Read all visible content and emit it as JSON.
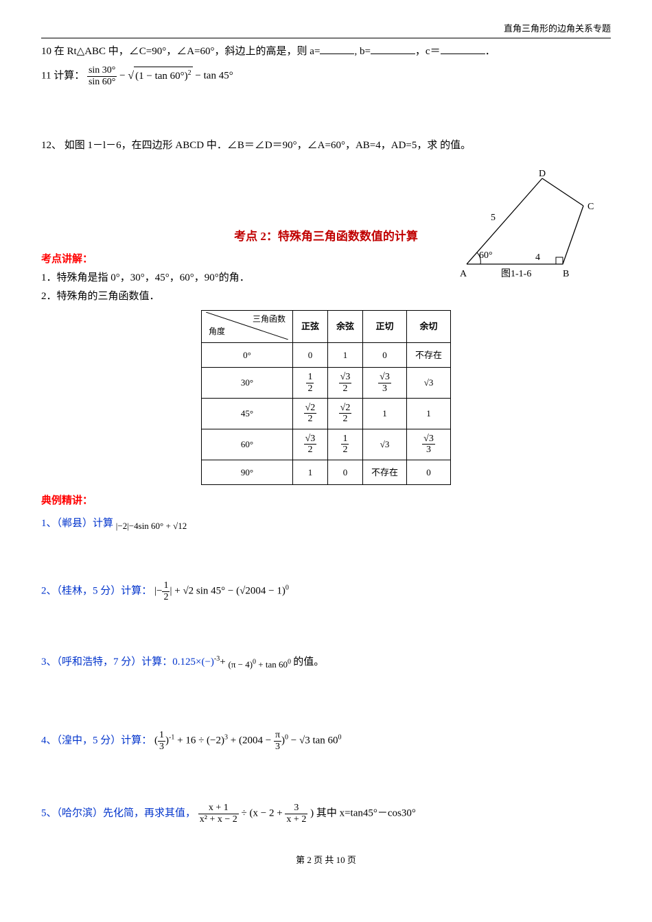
{
  "header": {
    "right_text": "直角三角形的边角关系专题"
  },
  "q10": {
    "prefix": "10 在 Rt△ABC 中，∠C=90°，∠A=60°，斜边上的高是，则 a=",
    "mid1": ", b=",
    "mid2": "，c＝",
    "tail": "．"
  },
  "q11": {
    "label": "11 计算：",
    "frac_num": "sin 30°",
    "frac_den": "sin 60°",
    "minus1": " − ",
    "sqrt_body": "(1 − tan 60°)",
    "sq_sup": "2",
    "minus2": " − tan 45°"
  },
  "q12": {
    "text": "12、 如图 1－l－6，在四边形 ABCD 中．∠B＝∠D＝90°，∠A=60°，AB=4，AD=5，求 的值。"
  },
  "figure": {
    "A": "A",
    "B": "B",
    "C": "C",
    "D": "D",
    "side5": "5",
    "side4": "4",
    "angle": "60°",
    "caption": "图1-1-6"
  },
  "kp2_title": "考点 2：特殊角三角函数数值的计算",
  "kdjj": "考点讲解：",
  "pt1": "1．特殊角是指 0°，30°，45°，60°，90°的角．",
  "pt2": "2．特殊角的三角函数值．",
  "table": {
    "hdr_diag_top": "三角函数",
    "hdr_diag_bottom": "角度",
    "cols": [
      "正弦",
      "余弦",
      "正切",
      "余切"
    ],
    "rows": [
      {
        "ang": "0°",
        "cells": [
          {
            "t": "0"
          },
          {
            "t": "1"
          },
          {
            "t": "0"
          },
          {
            "t": "不存在"
          }
        ]
      },
      {
        "ang": "30°",
        "cells": [
          {
            "frac": [
              "1",
              "2"
            ]
          },
          {
            "frac": [
              "√3",
              "2"
            ]
          },
          {
            "frac": [
              "√3",
              "3"
            ]
          },
          {
            "t": "√3"
          }
        ]
      },
      {
        "ang": "45°",
        "cells": [
          {
            "frac": [
              "√2",
              "2"
            ]
          },
          {
            "frac": [
              "√2",
              "2"
            ]
          },
          {
            "t": "1"
          },
          {
            "t": "1"
          }
        ]
      },
      {
        "ang": "60°",
        "cells": [
          {
            "frac": [
              "√3",
              "2"
            ]
          },
          {
            "frac": [
              "1",
              "2"
            ]
          },
          {
            "t": "√3"
          },
          {
            "frac": [
              "√3",
              "3"
            ]
          }
        ]
      },
      {
        "ang": "90°",
        "cells": [
          {
            "t": "1"
          },
          {
            "t": "0"
          },
          {
            "t": "不存在"
          },
          {
            "t": "0"
          }
        ]
      }
    ]
  },
  "dljj": "典例精讲：",
  "ex1": {
    "label": "1、（郸县）计算",
    "expr": "|−2|−4sin 60° + √12"
  },
  "ex2": {
    "label": "2、（桂林，5 分）计算：",
    "expr_pre": "|−",
    "frac": [
      "1",
      "2"
    ],
    "expr_post": "| + √2 sin 45° − (√2004 − 1)",
    "sup": "0"
  },
  "ex3": {
    "label": "3、（呼和浩特，7 分）计算：0.125×(−)",
    "sup1": "-3",
    "plus": "+",
    "sub_expr": "(π − 4)",
    "sub_sup": "0",
    "plus2": " + tan 60",
    "sub_sup2": "0",
    "tail": " 的值。"
  },
  "ex4": {
    "label": "4、（湟中，5 分）计算：",
    "p1_open": "(",
    "frac1": [
      "1",
      "3"
    ],
    "p1_close": ")",
    "sup1": "-1",
    "mid": " + 16 ÷ (−2)",
    "sup2": "3",
    "plus": " + (2004 − ",
    "frac2": [
      "π",
      "3"
    ],
    "close2": ")",
    "sup3": "0",
    "tail": " − √3 tan 60",
    "sup4": "0"
  },
  "ex5": {
    "label": "5、（哈尔滨）先化简，再求其值，",
    "frac1_num": "x + 1",
    "frac1_den": "x² + x − 2",
    "div": " ÷ (x − 2 + ",
    "frac2_num": "3",
    "frac2_den": "x + 2",
    "close": ")",
    "text": " 其中 x=tan45°－cos30°"
  },
  "footer": "第 2 页 共 10 页"
}
